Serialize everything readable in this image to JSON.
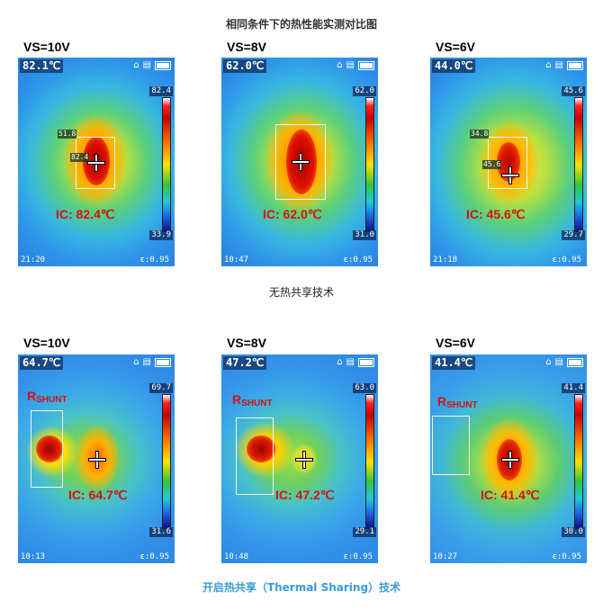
{
  "title": "相同条件下的热性能实测对比图",
  "caption_top": "无热共享技术",
  "caption_bottom": "开启热共享（Thermal Sharing）技术",
  "shunt_label": "R",
  "shunt_sub": "SHUNT",
  "emissivity": "ε:0.95",
  "panels": [
    {
      "vs": "VS=10V",
      "temp": "82.1℃",
      "scale_max": "82.4",
      "scale_min": "33.9",
      "time": "21:20",
      "ic": "IC: 82.4℃",
      "mini1": "51.8",
      "mini2": "82.4"
    },
    {
      "vs": "VS=8V",
      "temp": "62.0℃",
      "scale_max": "62.0",
      "scale_min": "31.0",
      "time": "10:47",
      "ic": "IC: 62.0℃"
    },
    {
      "vs": "VS=6V",
      "temp": "44.0℃",
      "scale_max": "45.6",
      "scale_min": "29.7",
      "time": "21:18",
      "ic": "IC: 45.6℃",
      "mini1": "34.8",
      "mini2": "45.6"
    },
    {
      "vs": "VS=10V",
      "temp": "64.7℃",
      "scale_max": "69.7",
      "scale_min": "31.6",
      "time": "10:13",
      "ic": "IC: 64.7℃"
    },
    {
      "vs": "VS=8V",
      "temp": "47.2℃",
      "scale_max": "63.0",
      "scale_min": "29.1",
      "time": "10:48",
      "ic": "IC: 47.2℃"
    },
    {
      "vs": "VS=6V",
      "temp": "41.4℃",
      "scale_max": "41.4",
      "scale_min": "30.0",
      "time": "10:27",
      "ic": "IC: 41.4℃"
    }
  ]
}
